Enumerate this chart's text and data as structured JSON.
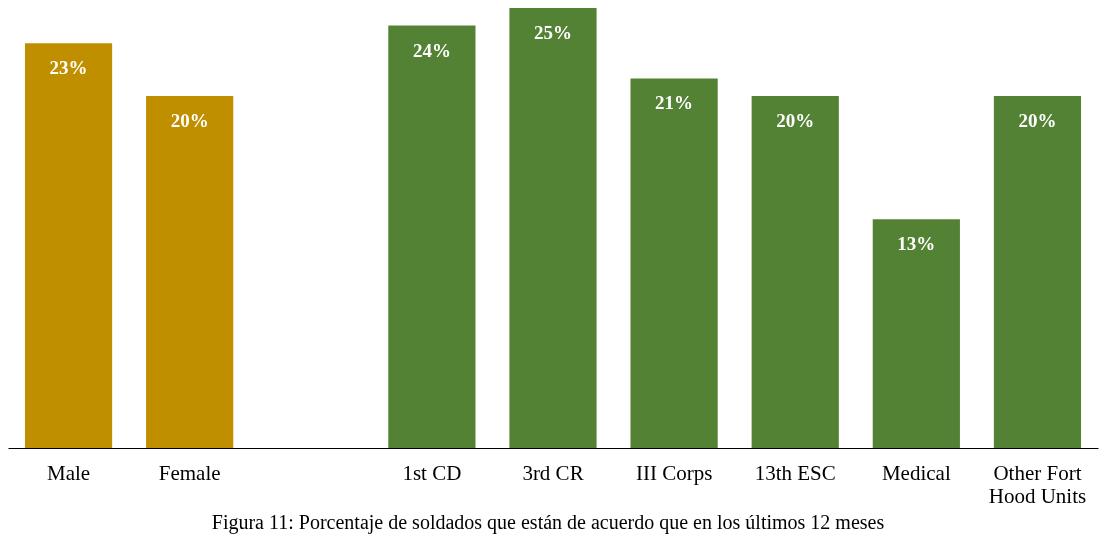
{
  "chart_data": {
    "type": "bar",
    "categories": [
      "Male",
      "Female",
      null,
      "1st CD",
      "3rd CR",
      "III Corps",
      "13th ESC",
      "Medical",
      "Other Fort Hood Units"
    ],
    "values": [
      23,
      20,
      null,
      24,
      25,
      21,
      20,
      13,
      20
    ],
    "colors": [
      "#bf8f00",
      "#bf8f00",
      "#bf8f00",
      "#548235",
      "#548235",
      "#548235",
      "#548235",
      "#548235",
      "#548235"
    ],
    "value_labels": [
      "23%",
      "20%",
      null,
      "24%",
      "25%",
      "21%",
      "20%",
      "13%",
      "20%"
    ],
    "annotations": [
      "Figura 11: Porcentaje de soldados que están de acuerdo que en los últimos 12 meses"
    ],
    "grid": false
  }
}
